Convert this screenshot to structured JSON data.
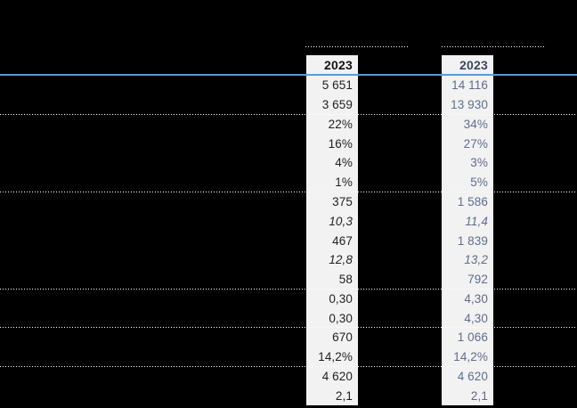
{
  "periods": [
    {
      "label": "2023"
    },
    {
      "label": "2023"
    }
  ],
  "table": {
    "rows": [
      {
        "c1": "5 651",
        "c2": "14 116",
        "italic": false,
        "sep_after": false
      },
      {
        "c1": "3 659",
        "c2": "13 930",
        "italic": false,
        "sep_after": true
      },
      {
        "c1": "22%",
        "c2": "34%",
        "italic": false,
        "sep_after": false
      },
      {
        "c1": "16%",
        "c2": "27%",
        "italic": false,
        "sep_after": false
      },
      {
        "c1": "4%",
        "c2": "3%",
        "italic": false,
        "sep_after": false
      },
      {
        "c1": "1%",
        "c2": "5%",
        "italic": false,
        "sep_after": true
      },
      {
        "c1": "375",
        "c2": "1 586",
        "italic": false,
        "sep_after": false
      },
      {
        "c1": "10,3",
        "c2": "11,4",
        "italic": true,
        "sep_after": false
      },
      {
        "c1": "467",
        "c2": "1 839",
        "italic": false,
        "sep_after": false
      },
      {
        "c1": "12,8",
        "c2": "13,2",
        "italic": true,
        "sep_after": false
      },
      {
        "c1": "58",
        "c2": "792",
        "italic": false,
        "sep_after": true
      },
      {
        "c1": "0,30",
        "c2": "4,30",
        "italic": false,
        "sep_after": false
      },
      {
        "c1": "0,30",
        "c2": "4,30",
        "italic": false,
        "sep_after": true
      },
      {
        "c1": "670",
        "c2": "1 066",
        "italic": false,
        "sep_after": false
      },
      {
        "c1": "14,2%",
        "c2": "14,2%",
        "italic": false,
        "sep_after": true
      },
      {
        "c1": "4 620",
        "c2": "4 620",
        "italic": false,
        "sep_after": false
      },
      {
        "c1": "2,1",
        "c2": "2,1",
        "italic": false,
        "sep_after": false
      }
    ]
  },
  "colors": {
    "page_background": "#000000",
    "column_background": "#f2f2f2",
    "left_column_text": "#1f1f1f",
    "right_column_text": "#5d6c8e",
    "right_header_text": "#3a4763",
    "left_header_text": "#131313",
    "header_rule_blue": "#5b9bd5",
    "dotted_line": "#ffffff"
  }
}
